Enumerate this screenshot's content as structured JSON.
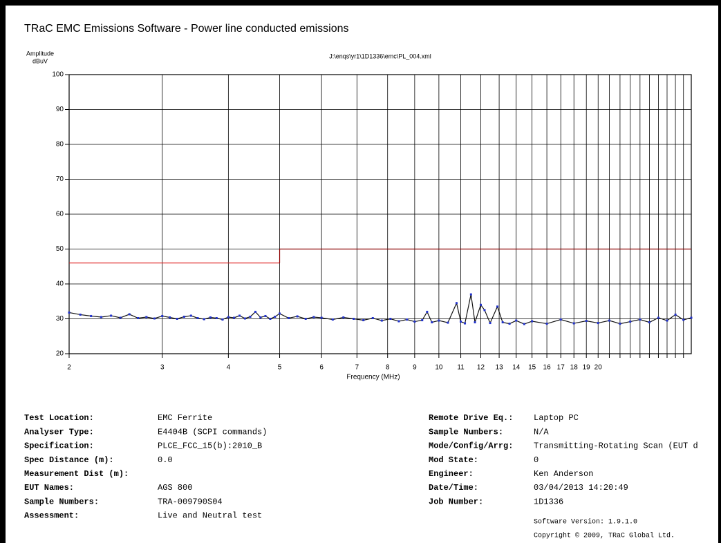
{
  "chart_data": {
    "type": "line",
    "title": "TRaC EMC Emissions Software - Power line conducted emissions",
    "subtitle": "J:\\enqs\\yr1\\1D1336\\emc\\PL_004.xml",
    "ylabel": [
      "Amplitude",
      "dBuV"
    ],
    "xlabel": "Frequency (MHz)",
    "log_x": true,
    "grid": true,
    "xlim": [
      2,
      30
    ],
    "ylim": [
      20,
      100
    ],
    "xticks": [
      2,
      3,
      4,
      5,
      6,
      7,
      8,
      9,
      10,
      11,
      12,
      13,
      14,
      15,
      16,
      17,
      18,
      19,
      20
    ],
    "xgrid_extra": [
      21,
      22,
      23,
      24,
      25,
      26,
      27,
      28,
      29
    ],
    "yticks": [
      20,
      30,
      40,
      50,
      60,
      70,
      80,
      90,
      100
    ],
    "series": [
      {
        "color": "#e02020",
        "x": [
          2,
          5
        ],
        "values": [
          46,
          46
        ]
      },
      {
        "color": "#8b0000",
        "x": [
          5,
          5,
          30
        ],
        "values": [
          46,
          50,
          50
        ]
      },
      {
        "color": "#111111",
        "marker_color": "#2233cc",
        "x": [
          2,
          2.1,
          2.2,
          2.3,
          2.4,
          2.5,
          2.6,
          2.7,
          2.8,
          2.9,
          3.0,
          3.1,
          3.2,
          3.3,
          3.4,
          3.5,
          3.6,
          3.7,
          3.8,
          3.9,
          4.0,
          4.1,
          4.2,
          4.3,
          4.4,
          4.5,
          4.6,
          4.7,
          4.8,
          4.9,
          5.0,
          5.2,
          5.4,
          5.6,
          5.8,
          6.0,
          6.3,
          6.6,
          6.9,
          7.2,
          7.5,
          7.8,
          8.1,
          8.4,
          8.7,
          9.0,
          9.3,
          9.5,
          9.7,
          10.0,
          10.4,
          10.8,
          11.0,
          11.2,
          11.5,
          11.7,
          12.0,
          12.2,
          12.5,
          12.9,
          13.2,
          13.6,
          14,
          14.5,
          15,
          16,
          17,
          18,
          19,
          20,
          21,
          22,
          23,
          24,
          25,
          26,
          27,
          28,
          29,
          30
        ],
        "values": [
          31.8,
          31.2,
          30.8,
          30.5,
          30.9,
          30.3,
          31.3,
          30.2,
          30.5,
          30.1,
          30.8,
          30.4,
          30.0,
          30.6,
          30.9,
          30.2,
          29.9,
          30.4,
          30.2,
          29.8,
          30.5,
          30.3,
          30.9,
          30.1,
          30.6,
          32.0,
          30.4,
          30.8,
          30.0,
          30.6,
          31.5,
          30.2,
          30.7,
          30.0,
          30.5,
          30.3,
          29.8,
          30.4,
          30.0,
          29.6,
          30.2,
          29.5,
          30.0,
          29.3,
          29.8,
          29.2,
          29.6,
          32.0,
          29.0,
          29.5,
          28.9,
          34.5,
          29.2,
          28.7,
          37.0,
          29.0,
          34.0,
          32.5,
          28.8,
          33.5,
          29.0,
          28.6,
          29.5,
          28.5,
          29.3,
          28.6,
          29.8,
          28.7,
          29.4,
          28.8,
          29.5,
          28.6,
          29.2,
          29.8,
          29.0,
          30.3,
          29.5,
          31.2,
          29.7,
          30.3
        ]
      }
    ]
  },
  "info": {
    "left": [
      {
        "label": "Test Location:",
        "value": "EMC Ferrite"
      },
      {
        "label": "Analyser Type:",
        "value": "E4404B (SCPI commands)"
      },
      {
        "label": "Specification:",
        "value": "PLCE_FCC_15(b):2010_B"
      },
      {
        "label": "Spec Distance (m):",
        "value": "0.0"
      },
      {
        "label": "Measurement Dist (m):"
      },
      {
        "label": "EUT Names:",
        "value": "AGS 800"
      },
      {
        "label": "Sample Numbers:",
        "value": "TRA-009790S04"
      },
      {
        "label": "Assessment:",
        "value": "Live and Neutral test"
      }
    ],
    "right": [
      {
        "label": "Remote Drive Eq.:",
        "value": "Laptop PC"
      },
      {
        "label": "Sample Numbers:",
        "value": "N/A"
      },
      {
        "label": "Mode/Config/Arrg:",
        "value": "Transmitting-Rotating Scan (EUT d"
      },
      {
        "label": "Mod State:",
        "value": "0"
      },
      {
        "label": "Engineer:",
        "value": "Ken Anderson"
      },
      {
        "label": "Date/Time:",
        "value": "03/04/2013 14:20:49"
      },
      {
        "label": "Job Number:",
        "value": "1D1336"
      }
    ],
    "software_version": "Software Version: 1.9.1.0",
    "copyright": "Copyright © 2009, TRaC Global Ltd."
  }
}
